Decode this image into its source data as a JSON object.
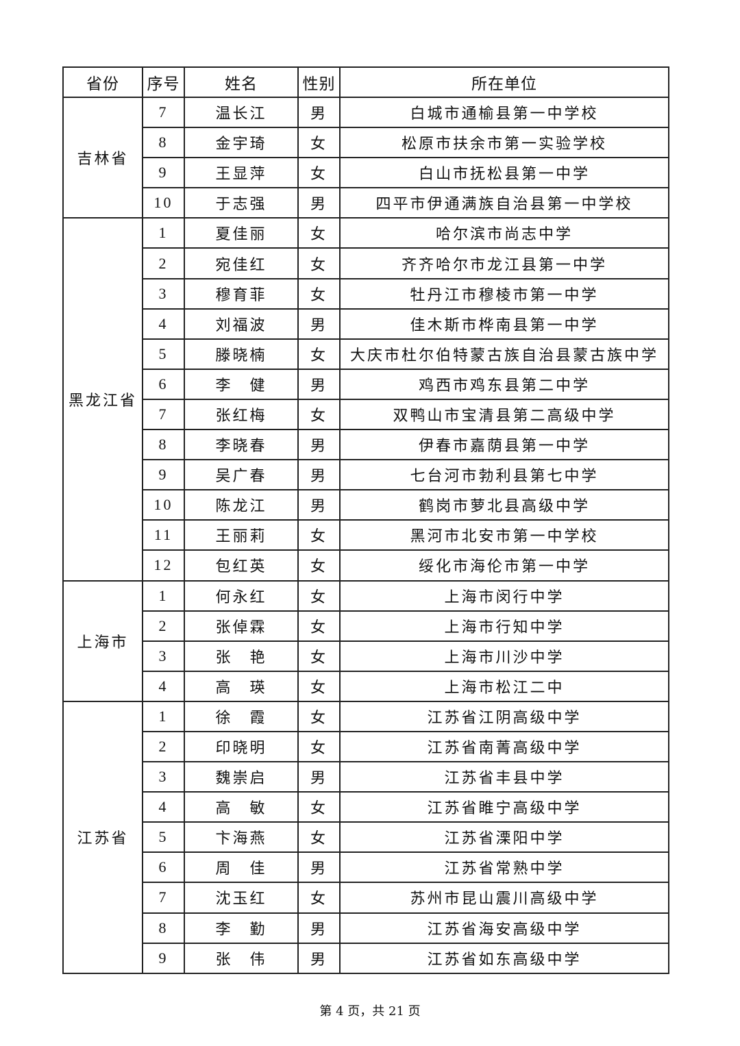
{
  "headers": {
    "province": "省份",
    "no": "序号",
    "name": "姓名",
    "gender": "性别",
    "unit": "所在单位"
  },
  "groups": [
    {
      "province": "吉林省",
      "rows": [
        {
          "no": "7",
          "name": "温长江",
          "gender": "男",
          "unit": "白城市通榆县第一中学校"
        },
        {
          "no": "8",
          "name": "金宇琦",
          "gender": "女",
          "unit": "松原市扶余市第一实验学校"
        },
        {
          "no": "9",
          "name": "王显萍",
          "gender": "女",
          "unit": "白山市抚松县第一中学"
        },
        {
          "no": "10",
          "name": "于志强",
          "gender": "男",
          "unit": "四平市伊通满族自治县第一中学校"
        }
      ]
    },
    {
      "province": "黑龙江省",
      "rows": [
        {
          "no": "1",
          "name": "夏佳丽",
          "gender": "女",
          "unit": "哈尔滨市尚志中学"
        },
        {
          "no": "2",
          "name": "宛佳红",
          "gender": "女",
          "unit": "齐齐哈尔市龙江县第一中学"
        },
        {
          "no": "3",
          "name": "穆育菲",
          "gender": "女",
          "unit": "牡丹江市穆棱市第一中学"
        },
        {
          "no": "4",
          "name": "刘福波",
          "gender": "男",
          "unit": "佳木斯市桦南县第一中学"
        },
        {
          "no": "5",
          "name": "滕晓楠",
          "gender": "女",
          "unit": "大庆市杜尔伯特蒙古族自治县蒙古族中学"
        },
        {
          "no": "6",
          "name": "李　健",
          "gender": "男",
          "unit": "鸡西市鸡东县第二中学"
        },
        {
          "no": "7",
          "name": "张红梅",
          "gender": "女",
          "unit": "双鸭山市宝清县第二高级中学"
        },
        {
          "no": "8",
          "name": "李晓春",
          "gender": "男",
          "unit": "伊春市嘉荫县第一中学"
        },
        {
          "no": "9",
          "name": "吴广春",
          "gender": "男",
          "unit": "七台河市勃利县第七中学"
        },
        {
          "no": "10",
          "name": "陈龙江",
          "gender": "男",
          "unit": "鹤岗市萝北县高级中学"
        },
        {
          "no": "11",
          "name": "王丽莉",
          "gender": "女",
          "unit": "黑河市北安市第一中学校"
        },
        {
          "no": "12",
          "name": "包红英",
          "gender": "女",
          "unit": "绥化市海伦市第一中学"
        }
      ]
    },
    {
      "province": "上海市",
      "rows": [
        {
          "no": "1",
          "name": "何永红",
          "gender": "女",
          "unit": "上海市闵行中学"
        },
        {
          "no": "2",
          "name": "张倬霖",
          "gender": "女",
          "unit": "上海市行知中学"
        },
        {
          "no": "3",
          "name": "张　艳",
          "gender": "女",
          "unit": "上海市川沙中学"
        },
        {
          "no": "4",
          "name": "高　瑛",
          "gender": "女",
          "unit": "上海市松江二中"
        }
      ]
    },
    {
      "province": "江苏省",
      "rows": [
        {
          "no": "1",
          "name": "徐　霞",
          "gender": "女",
          "unit": "江苏省江阴高级中学"
        },
        {
          "no": "2",
          "name": "印晓明",
          "gender": "女",
          "unit": "江苏省南菁高级中学"
        },
        {
          "no": "3",
          "name": "魏崇启",
          "gender": "男",
          "unit": "江苏省丰县中学"
        },
        {
          "no": "4",
          "name": "高　敏",
          "gender": "女",
          "unit": "江苏省睢宁高级中学"
        },
        {
          "no": "5",
          "name": "卞海燕",
          "gender": "女",
          "unit": "江苏省溧阳中学"
        },
        {
          "no": "6",
          "name": "周　佳",
          "gender": "男",
          "unit": "江苏省常熟中学"
        },
        {
          "no": "7",
          "name": "沈玉红",
          "gender": "女",
          "unit": "苏州市昆山震川高级中学"
        },
        {
          "no": "8",
          "name": "李　勤",
          "gender": "男",
          "unit": "江苏省海安高级中学"
        },
        {
          "no": "9",
          "name": "张　伟",
          "gender": "男",
          "unit": "江苏省如东高级中学"
        }
      ]
    }
  ],
  "footer": "第 4 页，共 21 页"
}
